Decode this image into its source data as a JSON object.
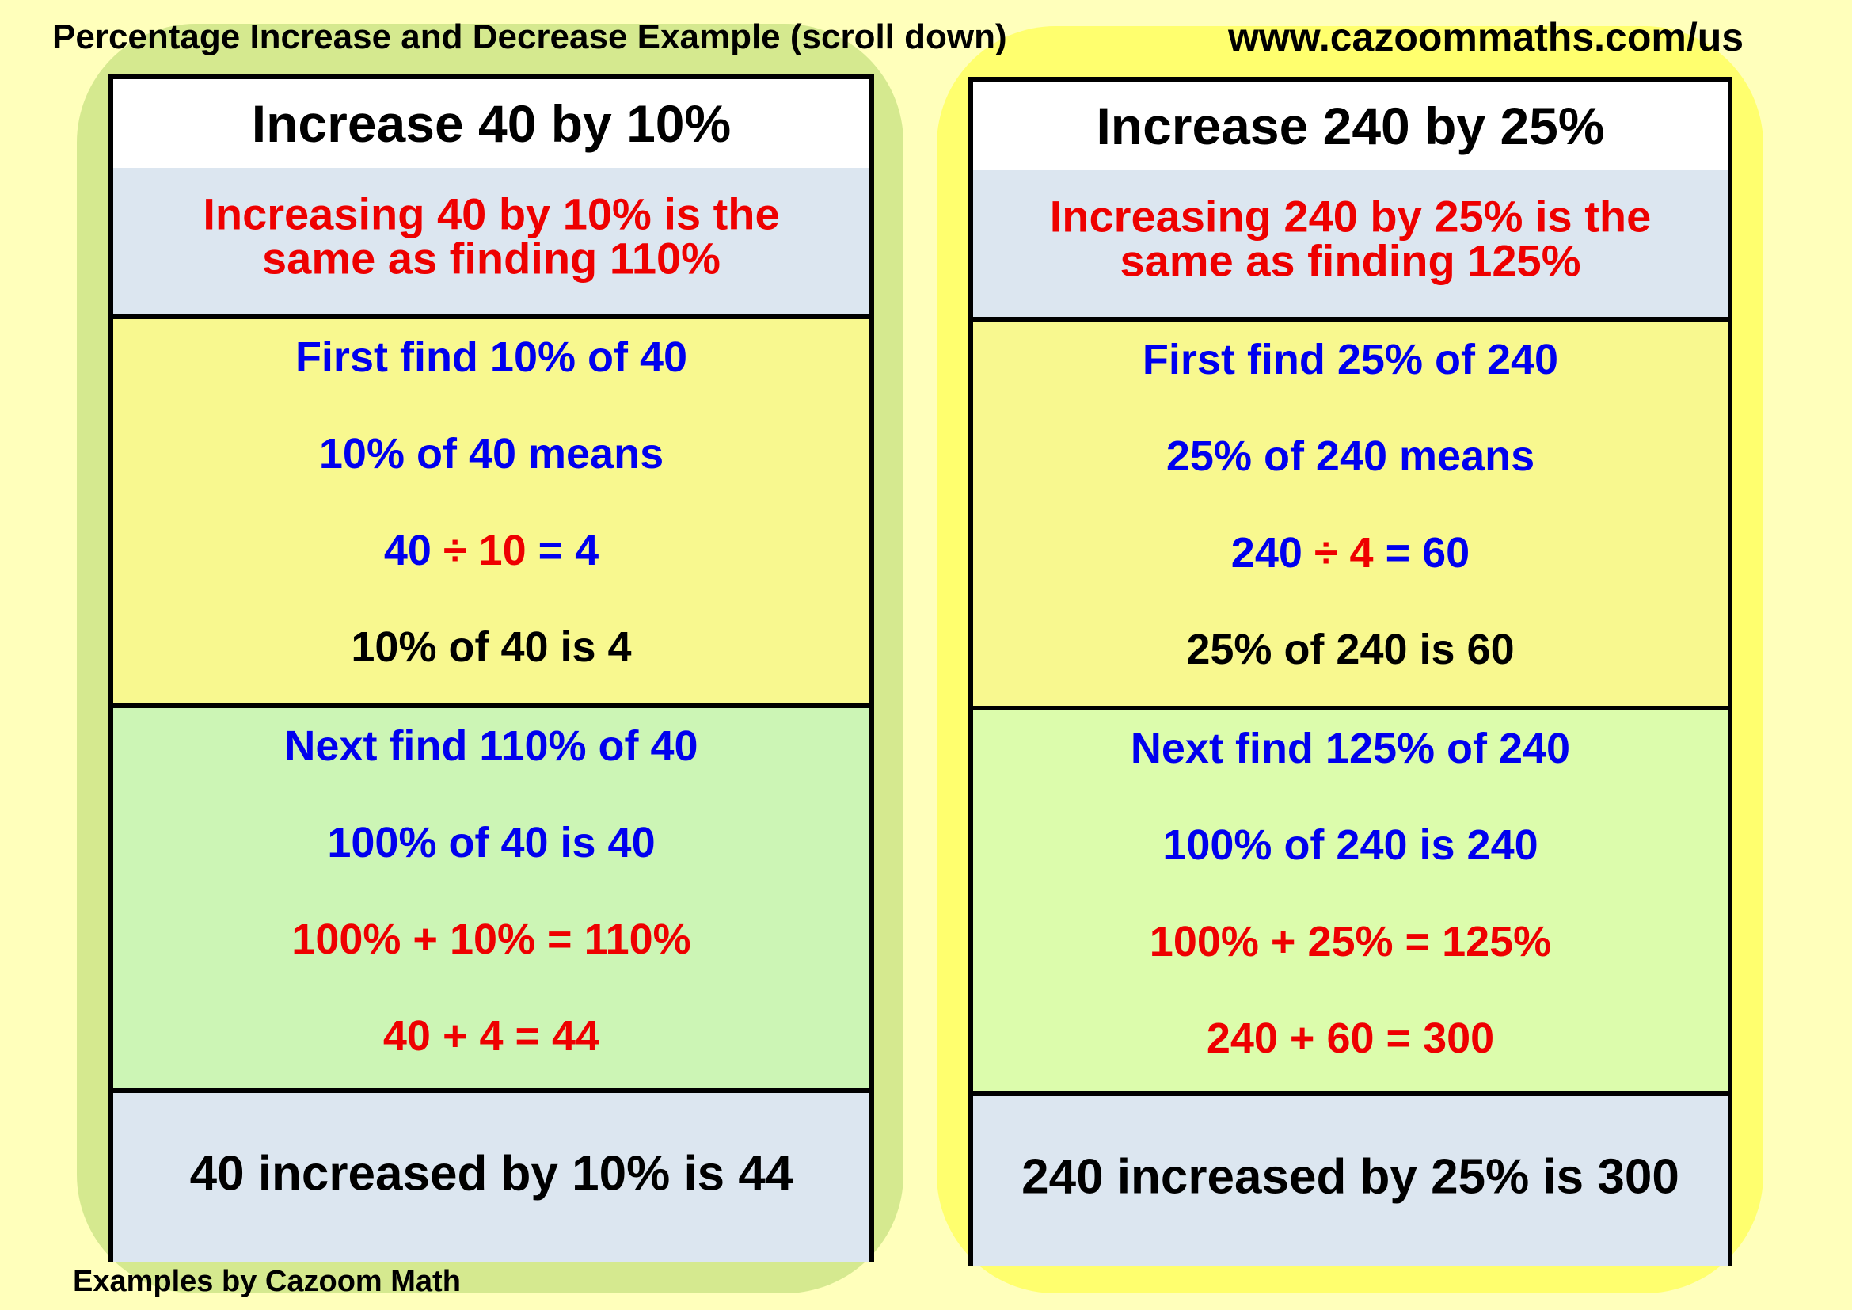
{
  "page": {
    "title": "Percentage Increase and Decrease Example (scroll down)",
    "url": "www.cazoommaths.com/us",
    "footer": "Examples by Cazoom Math"
  },
  "colors": {
    "background": "#ffffbb",
    "left_panel": "#d5e98f",
    "right_panel": "#ffff6e",
    "red": "#ee0000",
    "blue": "#0000ee",
    "black": "#000000",
    "header_bg": "#ffffff",
    "intro_bg": "#dce6f0",
    "step1_bg": "#f8f88f",
    "left_step2_bg": "#ccf5b5",
    "right_step2_bg": "#dcfcac",
    "result_bg": "#dce6f0"
  },
  "cards": [
    {
      "header": "Increase 40 by 10%",
      "intro": [
        "Increasing 40 by 10% is the",
        "same as finding 110%"
      ],
      "step1": [
        [
          {
            "text": "First find 10% of 40",
            "color": "blue"
          }
        ],
        [
          {
            "text": "10% of 40 means",
            "color": "blue"
          }
        ],
        [
          {
            "text": "40",
            "color": "blue"
          },
          {
            "text": " ÷ 10",
            "color": "red"
          },
          {
            "text": " = 4",
            "color": "blue"
          }
        ],
        [
          {
            "text": "10% of 40 is 4",
            "color": "black"
          }
        ]
      ],
      "step2": [
        [
          {
            "text": "Next find 110% of 40",
            "color": "blue"
          }
        ],
        [
          {
            "text": "100% of 40 is 40",
            "color": "blue"
          }
        ],
        [
          {
            "text": "100% + 10% = 110%",
            "color": "red"
          }
        ],
        [
          {
            "text": "40 + 4 = 44",
            "color": "red"
          }
        ]
      ],
      "result": "40 increased by 10% is 44"
    },
    {
      "header": "Increase 240 by 25%",
      "intro": [
        "Increasing 240 by 25% is the",
        "same as finding 125%"
      ],
      "step1": [
        [
          {
            "text": "First find 25% of 240",
            "color": "blue"
          }
        ],
        [
          {
            "text": "25% of 240 means",
            "color": "blue"
          }
        ],
        [
          {
            "text": "240",
            "color": "blue"
          },
          {
            "text": " ÷ 4",
            "color": "red"
          },
          {
            "text": " = 60",
            "color": "blue"
          }
        ],
        [
          {
            "text": "25% of 240 is 60",
            "color": "black"
          }
        ]
      ],
      "step2": [
        [
          {
            "text": "Next find 125% of 240",
            "color": "blue"
          }
        ],
        [
          {
            "text": "100% of 240 is 240",
            "color": "blue"
          }
        ],
        [
          {
            "text": "100% + 25% = 125%",
            "color": "red"
          }
        ],
        [
          {
            "text": "240 + 60 = 300",
            "color": "red"
          }
        ]
      ],
      "result": "240 increased by 25% is 300"
    }
  ]
}
